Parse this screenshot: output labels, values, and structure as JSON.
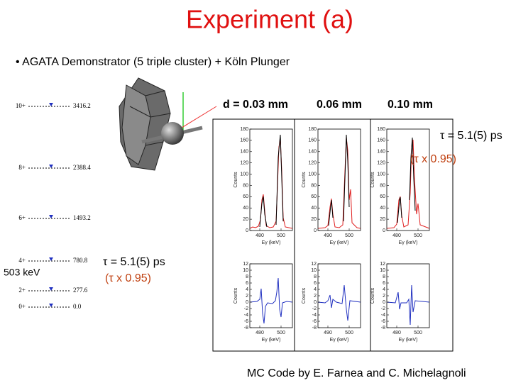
{
  "header": {
    "title": "Experiment (a)"
  },
  "bullet": "• AGATA Demonstrator (5 triple cluster) + Köln Plunger",
  "level_scheme": {
    "levels": [
      {
        "spin": "10+",
        "energy": "3416.2"
      },
      {
        "spin": "8+",
        "energy": "2388.4"
      },
      {
        "spin": "6+",
        "energy": "1493.2"
      },
      {
        "spin": "4+",
        "energy": "780.8"
      },
      {
        "spin": "2+",
        "energy": "277.6"
      },
      {
        "spin": "0+",
        "energy": "0.0"
      }
    ],
    "transition_label": "503 keV"
  },
  "annotations": {
    "lifetime_left": [
      "τ = 5.1(5) ps",
      "(τ x 0.95)"
    ],
    "lifetime_right": [
      "τ = 5.1(5) ps",
      "(τ x 0.95)"
    ]
  },
  "spectra": {
    "panels": [
      {
        "label": "d = 0.03 mm",
        "top_xticks": [
          480,
          500
        ],
        "bottom_xticks": [
          480,
          500
        ]
      },
      {
        "label": "0.06 mm",
        "top_xticks": [
          490,
          500
        ],
        "bottom_xticks": [
          490,
          500
        ]
      },
      {
        "label": "0.10 mm",
        "top_xticks": [
          480,
          500
        ],
        "bottom_xticks": [
          480,
          500
        ]
      }
    ],
    "top": {
      "yticks": [
        0,
        20,
        40,
        60,
        80,
        100,
        120,
        140,
        160,
        180
      ],
      "ylabel": "Counts",
      "xlabel": "Eγ (keV)"
    },
    "bottom": {
      "yticks": [
        -8,
        -6,
        -4,
        -2,
        0,
        2,
        4,
        6,
        8,
        10,
        12
      ],
      "ylabel": "Counts",
      "xlabel": "Eγ (keV)"
    }
  },
  "footer": "MC Code by E. Farnea and C. Michelagnoli"
}
